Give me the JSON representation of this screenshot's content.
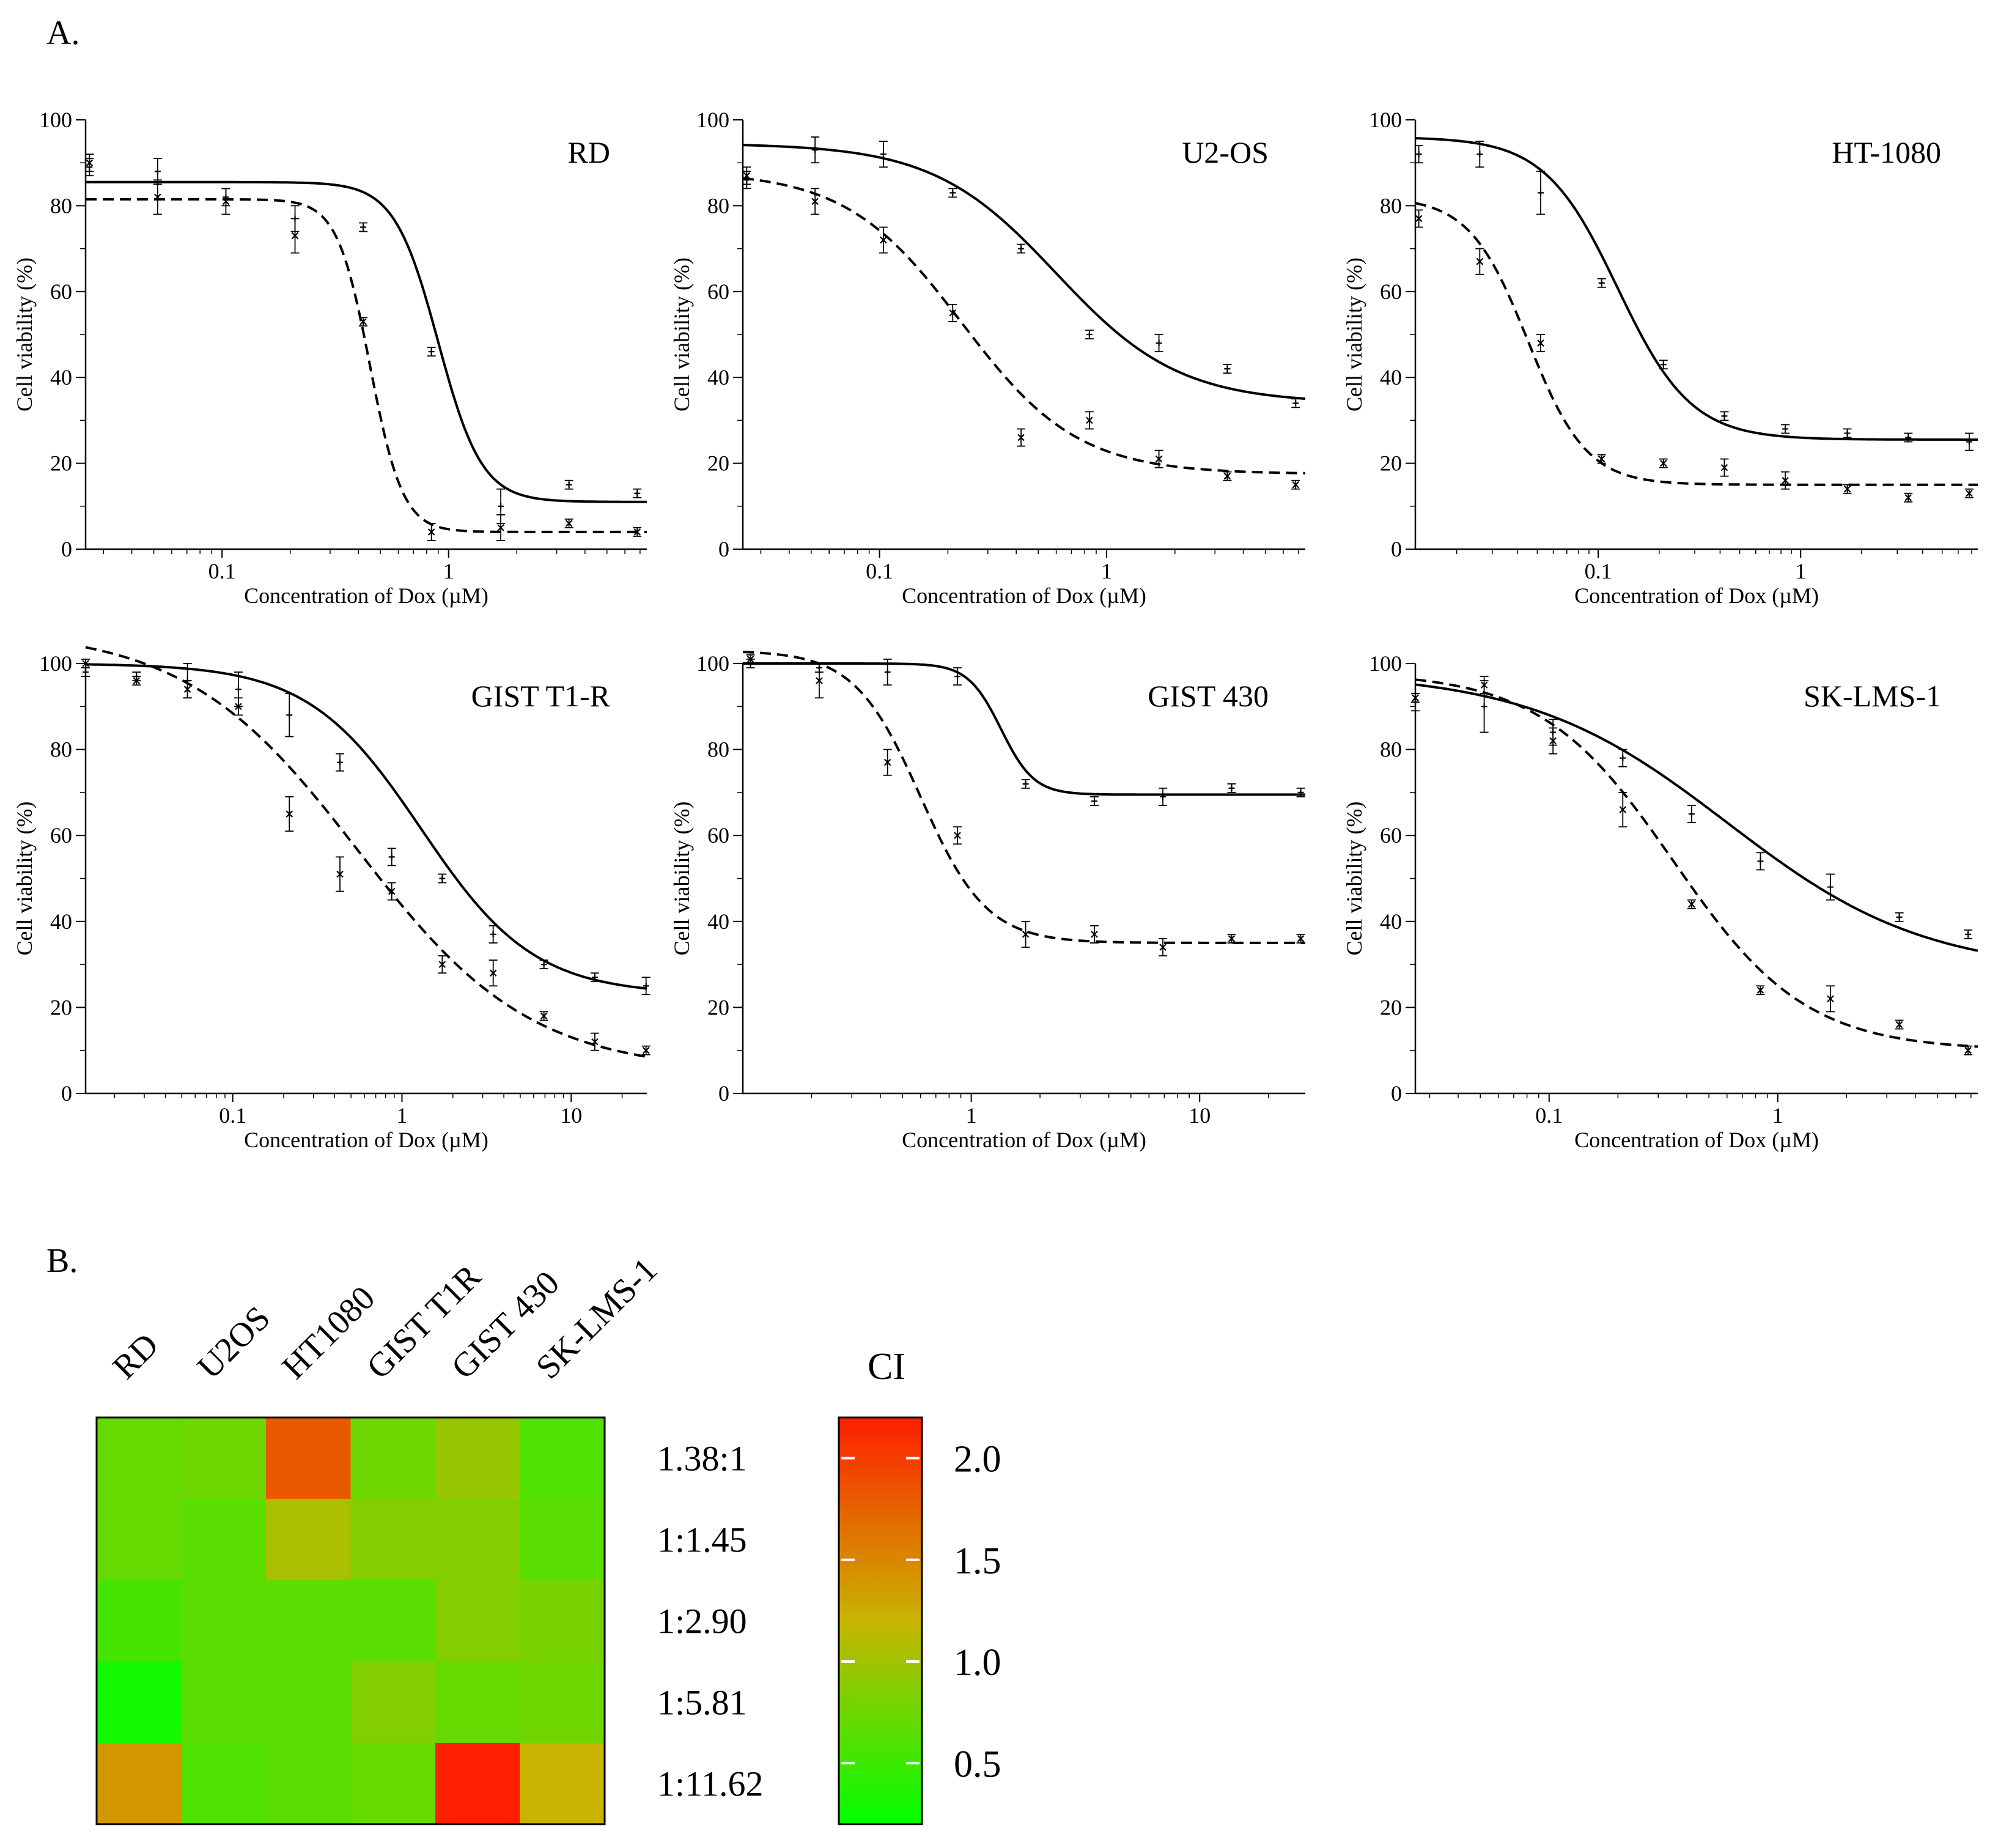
{
  "figure": {
    "panel_a_label": "A.",
    "panel_b_label": "B."
  },
  "chart_data": [
    {
      "type": "line",
      "title": "RD",
      "xlabel": "Concentration of Dox (µM)",
      "ylabel": "Cell viability (%)",
      "xscale": "log",
      "xlim": [
        0.025,
        7.5
      ],
      "ylim": [
        0,
        100
      ],
      "xticks": [
        {
          "v": 0.1,
          "label": "0.1"
        },
        {
          "v": 1,
          "label": "1"
        }
      ],
      "yticks": [
        0,
        20,
        40,
        60,
        80,
        100
      ],
      "series": [
        {
          "style": "solid",
          "curve": {
            "top": 85.5,
            "bottom": 11,
            "ic50": 0.9,
            "hill": 4.5
          },
          "x": [
            0.026,
            0.052,
            0.104,
            0.21,
            0.42,
            0.84,
            1.7,
            3.4,
            6.8
          ],
          "y": [
            89,
            88,
            82,
            77,
            75,
            46,
            10,
            15,
            13
          ],
          "err": [
            2,
            3,
            2,
            3,
            1,
            1,
            4,
            1,
            1
          ]
        },
        {
          "style": "dashed",
          "curve": {
            "top": 81.5,
            "bottom": 4,
            "ic50": 0.45,
            "hill": 6
          },
          "x": [
            0.026,
            0.052,
            0.104,
            0.21,
            0.42,
            0.84,
            1.7,
            3.4,
            6.8
          ],
          "y": [
            90,
            82,
            81,
            73,
            53,
            4,
            5,
            6,
            4
          ],
          "err": [
            2,
            4,
            3,
            4,
            1,
            2,
            3,
            1,
            1
          ]
        }
      ]
    },
    {
      "type": "line",
      "title": "U2-OS",
      "xlabel": "Concentration of Dox (µM)",
      "ylabel": "Cell viability (%)",
      "xscale": "log",
      "xlim": [
        0.025,
        7.5
      ],
      "ylim": [
        0,
        100
      ],
      "xticks": [
        {
          "v": 0.1,
          "label": "0.1"
        },
        {
          "v": 1,
          "label": "1"
        }
      ],
      "yticks": [
        0,
        20,
        40,
        60,
        80,
        100
      ],
      "series": [
        {
          "style": "solid",
          "curve": {
            "top": 94.5,
            "bottom": 34,
            "ic50": 0.6,
            "hill": 1.6
          },
          "x": [
            0.026,
            0.052,
            0.104,
            0.21,
            0.42,
            0.84,
            1.7,
            3.4,
            6.8
          ],
          "y": [
            86,
            93,
            92,
            83,
            70,
            50,
            48,
            42,
            34
          ],
          "err": [
            2,
            3,
            3,
            1,
            1,
            1,
            2,
            1,
            1
          ]
        },
        {
          "style": "dashed",
          "curve": {
            "top": 88,
            "bottom": 17.5,
            "ic50": 0.23,
            "hill": 1.7
          },
          "x": [
            0.026,
            0.052,
            0.104,
            0.21,
            0.42,
            0.84,
            1.7,
            3.4,
            6.8
          ],
          "y": [
            87,
            81,
            72,
            55,
            26,
            30,
            21,
            17,
            15
          ],
          "err": [
            2,
            3,
            3,
            2,
            2,
            2,
            2,
            1,
            1
          ]
        }
      ]
    },
    {
      "type": "line",
      "title": "HT-1080",
      "xlabel": "Concentration of Dox (µM)",
      "ylabel": "Cell viability (%)",
      "xscale": "log",
      "xlim": [
        0.0125,
        7.5
      ],
      "ylim": [
        0,
        100
      ],
      "xticks": [
        {
          "v": 0.1,
          "label": "0.1"
        },
        {
          "v": 1,
          "label": "1"
        }
      ],
      "yticks": [
        0,
        20,
        40,
        60,
        80,
        100
      ],
      "series": [
        {
          "style": "solid",
          "curve": {
            "top": 96,
            "bottom": 25.5,
            "ic50": 0.125,
            "hill": 2.4
          },
          "x": [
            0.013,
            0.026,
            0.052,
            0.104,
            0.21,
            0.42,
            0.84,
            1.7,
            3.4,
            6.8
          ],
          "y": [
            92,
            92,
            83,
            62,
            43,
            31,
            28,
            27,
            26,
            25
          ],
          "err": [
            2,
            3,
            5,
            1,
            1,
            1,
            1,
            1,
            1,
            2
          ]
        },
        {
          "style": "dashed",
          "curve": {
            "top": 82,
            "bottom": 15,
            "ic50": 0.045,
            "hill": 3
          },
          "x": [
            0.013,
            0.026,
            0.052,
            0.104,
            0.21,
            0.42,
            0.84,
            1.7,
            3.4,
            6.8
          ],
          "y": [
            77,
            67,
            48,
            21,
            20,
            19,
            16,
            14,
            12,
            13
          ],
          "err": [
            2,
            3,
            2,
            1,
            1,
            2,
            2,
            1,
            1,
            1
          ]
        }
      ]
    },
    {
      "type": "line",
      "title": "GIST T1-R",
      "xlabel": "Concentration of Dox (µM)",
      "ylabel": "Cell viability (%)",
      "xscale": "log",
      "xlim": [
        0.0135,
        28
      ],
      "ylim": [
        0,
        100
      ],
      "xticks": [
        {
          "v": 0.1,
          "label": "0.1"
        },
        {
          "v": 1,
          "label": "1"
        },
        {
          "v": 10,
          "label": "10"
        }
      ],
      "yticks": [
        0,
        20,
        40,
        60,
        80,
        100
      ],
      "series": [
        {
          "style": "solid",
          "curve": {
            "top": 100,
            "bottom": 23,
            "ic50": 1.3,
            "hill": 1.3
          },
          "x": [
            0.0135,
            0.027,
            0.054,
            0.108,
            0.216,
            0.43,
            0.87,
            1.73,
            3.46,
            6.9,
            13.8,
            27.7
          ],
          "y": [
            98,
            97,
            96,
            94,
            88,
            77,
            55,
            50,
            37,
            30,
            27,
            25
          ],
          "err": [
            1,
            1,
            4,
            4,
            5,
            2,
            2,
            1,
            2,
            1,
            1,
            2
          ]
        },
        {
          "style": "dashed",
          "curve": {
            "top": 108,
            "bottom": 5,
            "ic50": 0.55,
            "hill": 0.85
          },
          "x": [
            0.0135,
            0.027,
            0.054,
            0.108,
            0.216,
            0.43,
            0.87,
            1.73,
            3.46,
            6.9,
            13.8,
            27.7
          ],
          "y": [
            100,
            96,
            94,
            90,
            65,
            51,
            47,
            30,
            28,
            18,
            12,
            10
          ],
          "err": [
            1,
            1,
            2,
            2,
            4,
            4,
            2,
            2,
            3,
            1,
            2,
            1
          ]
        }
      ]
    },
    {
      "type": "line",
      "title": "GIST 430",
      "xlabel": "Concentration of Dox (µM)",
      "ylabel": "Cell viability (%)",
      "xscale": "log",
      "xlim": [
        0.1,
        29
      ],
      "ylim": [
        0,
        100
      ],
      "xticks": [
        {
          "v": 1,
          "label": "1"
        },
        {
          "v": 10,
          "label": "10"
        }
      ],
      "yticks": [
        0,
        20,
        40,
        60,
        80,
        100
      ],
      "series": [
        {
          "style": "solid",
          "curve": {
            "top": 100,
            "bottom": 69.5,
            "ic50": 1.35,
            "hill": 6
          },
          "x": [
            0.108,
            0.216,
            0.43,
            0.87,
            1.73,
            3.46,
            6.9,
            13.8,
            27.7
          ],
          "y": [
            100,
            99,
            98,
            97,
            72,
            68,
            69,
            71,
            70
          ],
          "err": [
            1,
            1,
            3,
            2,
            1,
            1,
            2,
            1,
            1
          ]
        },
        {
          "style": "dashed",
          "curve": {
            "top": 103,
            "bottom": 35,
            "ic50": 0.6,
            "hill": 3
          },
          "x": [
            0.108,
            0.216,
            0.43,
            0.87,
            1.73,
            3.46,
            6.9,
            13.8,
            27.7
          ],
          "y": [
            101,
            96,
            77,
            60,
            37,
            37,
            34,
            36,
            36
          ],
          "err": [
            1,
            4,
            3,
            2,
            3,
            2,
            2,
            1,
            1
          ]
        }
      ]
    },
    {
      "type": "line",
      "title": "SK-LMS-1",
      "xlabel": "Concentration of Dox (µM)",
      "ylabel": "Cell viability (%)",
      "xscale": "log",
      "xlim": [
        0.026,
        7.5
      ],
      "ylim": [
        0,
        100
      ],
      "xticks": [
        {
          "v": 0.1,
          "label": "0.1"
        },
        {
          "v": 1,
          "label": "1"
        }
      ],
      "yticks": [
        0,
        20,
        40,
        60,
        80,
        100
      ],
      "series": [
        {
          "style": "solid",
          "curve": {
            "top": 98,
            "bottom": 28,
            "ic50": 0.6,
            "hill": 1
          },
          "x": [
            0.026,
            0.052,
            0.104,
            0.21,
            0.42,
            0.84,
            1.7,
            3.4,
            6.8
          ],
          "y": [
            91,
            90,
            84,
            78,
            65,
            54,
            48,
            41,
            37
          ],
          "err": [
            2,
            6,
            3,
            2,
            2,
            2,
            3,
            1,
            1
          ]
        },
        {
          "style": "dashed",
          "curve": {
            "top": 98,
            "bottom": 10,
            "ic50": 0.35,
            "hill": 1.5
          },
          "x": [
            0.026,
            0.052,
            0.104,
            0.21,
            0.42,
            0.84,
            1.7,
            3.4,
            6.8
          ],
          "y": [
            92,
            95,
            82,
            66,
            44,
            24,
            22,
            16,
            10
          ],
          "err": [
            1,
            2,
            3,
            4,
            1,
            1,
            3,
            1,
            1
          ]
        }
      ]
    },
    {
      "type": "heatmap",
      "columns": [
        "RD",
        "U2OS",
        "HT1080",
        "GIST T1R",
        "GIST 430",
        "SK-LMS-1"
      ],
      "rows": [
        "1.38:1",
        "1:1.45",
        "1:2.90",
        "1:5.81",
        "1:11.62"
      ],
      "values": [
        [
          0.7,
          0.75,
          1.8,
          0.75,
          0.95,
          0.6
        ],
        [
          0.7,
          0.65,
          1.05,
          0.85,
          0.85,
          0.65
        ],
        [
          0.55,
          0.65,
          0.65,
          0.65,
          0.85,
          0.8
        ],
        [
          0.3,
          0.65,
          0.65,
          0.85,
          0.7,
          0.75
        ],
        [
          1.4,
          0.6,
          0.65,
          0.7,
          2.2,
          1.2
        ]
      ],
      "colorbar": {
        "title": "CI",
        "min": 0.2,
        "max": 2.2,
        "ticks": [
          {
            "v": 2.0,
            "label": "2.0"
          },
          {
            "v": 1.5,
            "label": "1.5"
          },
          {
            "v": 1.0,
            "label": "1.0"
          },
          {
            "v": 0.5,
            "label": "0.5"
          }
        ],
        "colors": [
          "#00ff00",
          "#c8b400",
          "#ff1e00"
        ]
      }
    }
  ]
}
